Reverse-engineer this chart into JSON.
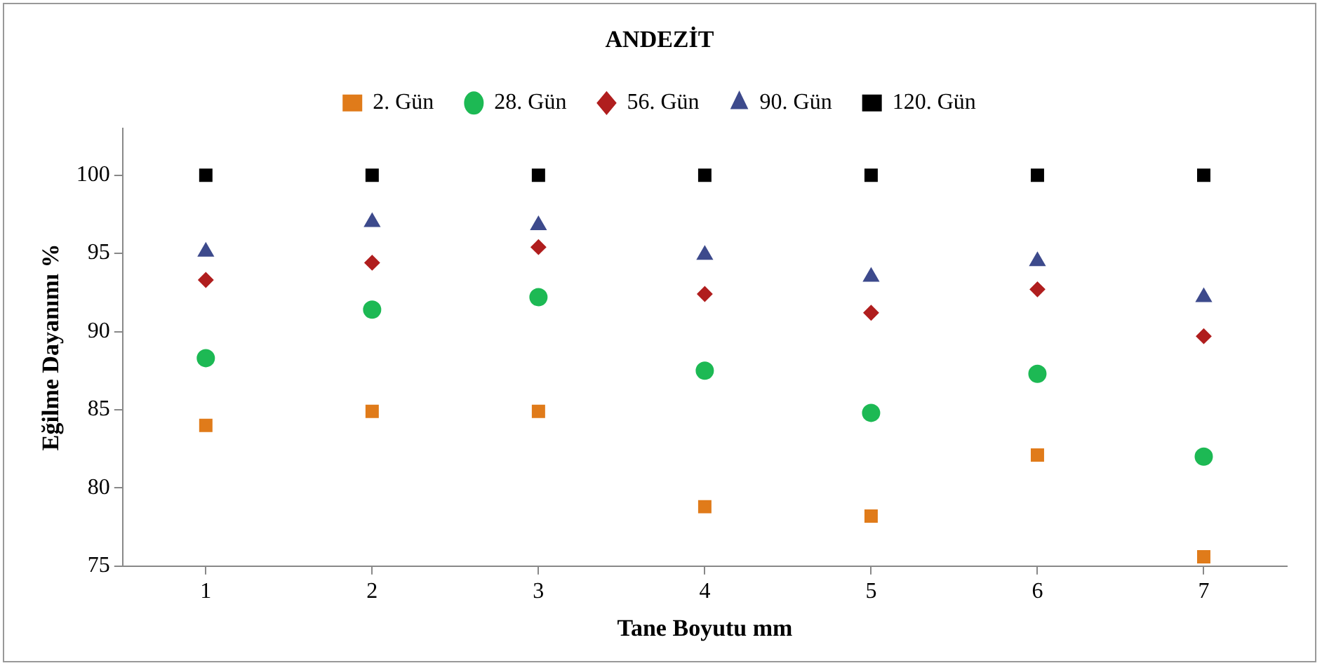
{
  "chart_data": {
    "type": "scatter",
    "title": "ANDEZİT",
    "xlabel": "Tane Boyutu mm",
    "ylabel": "Eğilme Dayanımı %",
    "categories": [
      "1",
      "2",
      "3",
      "4",
      "5",
      "6",
      "7"
    ],
    "ylim": [
      75,
      103
    ],
    "yticks": [
      75,
      80,
      85,
      90,
      95,
      100
    ],
    "grid": false,
    "legend": "top",
    "series": [
      {
        "name": "2. Gün",
        "color": "#e07b1a",
        "marker": "square",
        "values": [
          84.0,
          84.9,
          84.9,
          78.8,
          78.2,
          82.1,
          75.6
        ]
      },
      {
        "name": "28. Gün",
        "color": "#1db954",
        "marker": "circle",
        "values": [
          88.3,
          91.4,
          92.2,
          87.5,
          84.8,
          87.3,
          82.0
        ]
      },
      {
        "name": "56. Gün",
        "color": "#b01e1e",
        "marker": "diamond",
        "values": [
          93.3,
          94.4,
          95.4,
          92.4,
          91.2,
          92.7,
          89.7
        ]
      },
      {
        "name": "90. Gün",
        "color": "#3d4a8c",
        "marker": "triangle",
        "values": [
          95.1,
          97.0,
          96.8,
          94.9,
          93.5,
          94.5,
          92.2
        ]
      },
      {
        "name": "120. Gün",
        "color": "#000000",
        "marker": "square",
        "values": [
          100,
          100,
          100,
          100,
          100,
          100,
          100
        ]
      }
    ]
  }
}
